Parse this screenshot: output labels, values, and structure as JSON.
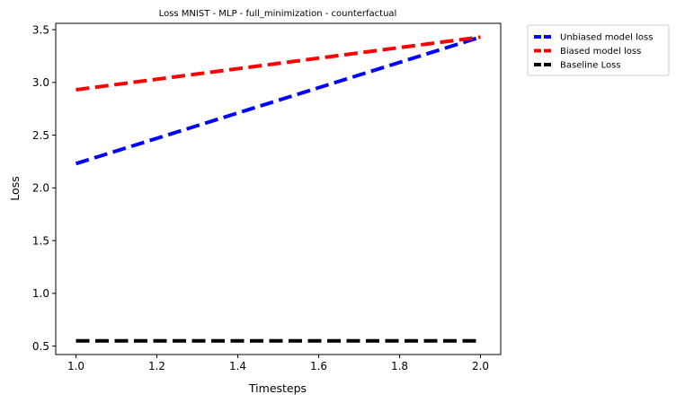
{
  "chart_data": {
    "type": "line",
    "title": "Loss MNIST - MLP - full_minimization - counterfactual",
    "xlabel": "Timesteps",
    "ylabel": "Loss",
    "xlim": [
      0.95,
      2.05
    ],
    "ylim": [
      0.42,
      3.56
    ],
    "xticks": [
      1.0,
      1.2,
      1.4,
      1.6,
      1.8,
      2.0
    ],
    "xtick_labels": [
      "1.0",
      "1.2",
      "1.4",
      "1.6",
      "1.8",
      "2.0"
    ],
    "yticks": [
      0.5,
      1.0,
      1.5,
      2.0,
      2.5,
      3.0,
      3.5
    ],
    "ytick_labels": [
      "0.5",
      "1.0",
      "1.5",
      "2.0",
      "2.5",
      "3.0",
      "3.5"
    ],
    "grid": false,
    "legend_position": "outside-upper-right",
    "x": [
      1.0,
      2.0
    ],
    "series": [
      {
        "name": "Unbiased model loss",
        "values": [
          2.23,
          3.43
        ],
        "color": "#0000ff",
        "dash": "dashed"
      },
      {
        "name": "Biased model loss",
        "values": [
          2.93,
          3.43
        ],
        "color": "#ff0000",
        "dash": "dashed"
      },
      {
        "name": "Baseline Loss",
        "values": [
          0.55,
          0.55
        ],
        "color": "#000000",
        "dash": "dashed"
      }
    ]
  }
}
